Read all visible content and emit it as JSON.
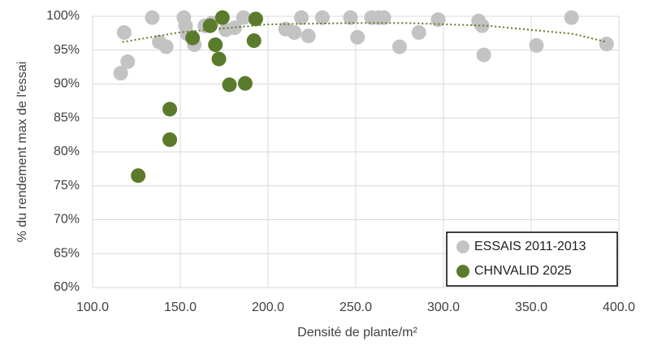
{
  "chart_data": {
    "type": "scatter",
    "x_label": "Densité de plante/m²",
    "y_label": "% du rendement max de l'essai",
    "xlim": [
      100,
      400
    ],
    "xticks": [
      {
        "value": 100,
        "label": "100.0"
      },
      {
        "value": 150,
        "label": "150.0"
      },
      {
        "value": 200,
        "label": "200.0"
      },
      {
        "value": 250,
        "label": "250.0"
      },
      {
        "value": 300,
        "label": "300.0"
      },
      {
        "value": 350,
        "label": "350.0"
      },
      {
        "value": 400,
        "label": "400.0"
      }
    ],
    "ylim": [
      60,
      100
    ],
    "yticks": [
      {
        "value": 60,
        "label": "60%"
      },
      {
        "value": 65,
        "label": "65%"
      },
      {
        "value": 70,
        "label": "70%"
      },
      {
        "value": 75,
        "label": "75%"
      },
      {
        "value": 80,
        "label": "80%"
      },
      {
        "value": 85,
        "label": "85%"
      },
      {
        "value": 90,
        "label": "90%"
      },
      {
        "value": 95,
        "label": "95%"
      },
      {
        "value": 100,
        "label": "100%"
      }
    ],
    "grid": true,
    "legend": "lower right",
    "series": [
      {
        "name": "ESSAIS 2011-2013",
        "color": "#c3c3c3",
        "x": [
          118,
          120,
          116,
          134,
          138,
          142,
          152,
          153,
          154,
          158,
          164,
          168,
          176,
          181,
          186,
          210,
          215,
          219,
          223,
          231,
          247,
          251,
          259,
          263,
          266,
          275,
          286,
          297,
          320,
          322,
          323,
          353,
          373,
          393
        ],
        "values": [
          97.6,
          93.3,
          91.6,
          99.8,
          96.2,
          95.5,
          99.8,
          98.6,
          97.4,
          95.8,
          98.6,
          99.0,
          98.0,
          98.3,
          99.8,
          98.1,
          97.6,
          99.8,
          97.1,
          99.8,
          99.8,
          96.9,
          99.8,
          99.8,
          99.8,
          95.5,
          97.6,
          99.5,
          99.3,
          98.6,
          94.3,
          95.7,
          99.8,
          95.9
        ]
      },
      {
        "name": "CHNVALID 2025",
        "color": "#5b7b2c",
        "x": [
          126,
          144,
          144,
          157,
          167,
          170,
          172,
          174,
          178,
          187,
          192,
          193
        ],
        "values": [
          76.5,
          86.3,
          81.8,
          96.8,
          98.6,
          95.8,
          93.7,
          99.8,
          89.9,
          90.1,
          96.4,
          99.6
        ]
      }
    ],
    "trendline": {
      "color": "#5b7b2c",
      "x": [
        117,
        149,
        200,
        250,
        279,
        325,
        374,
        393
      ],
      "values": [
        96.2,
        97.6,
        98.8,
        99.0,
        99.0,
        98.6,
        97.4,
        96.2
      ]
    }
  }
}
